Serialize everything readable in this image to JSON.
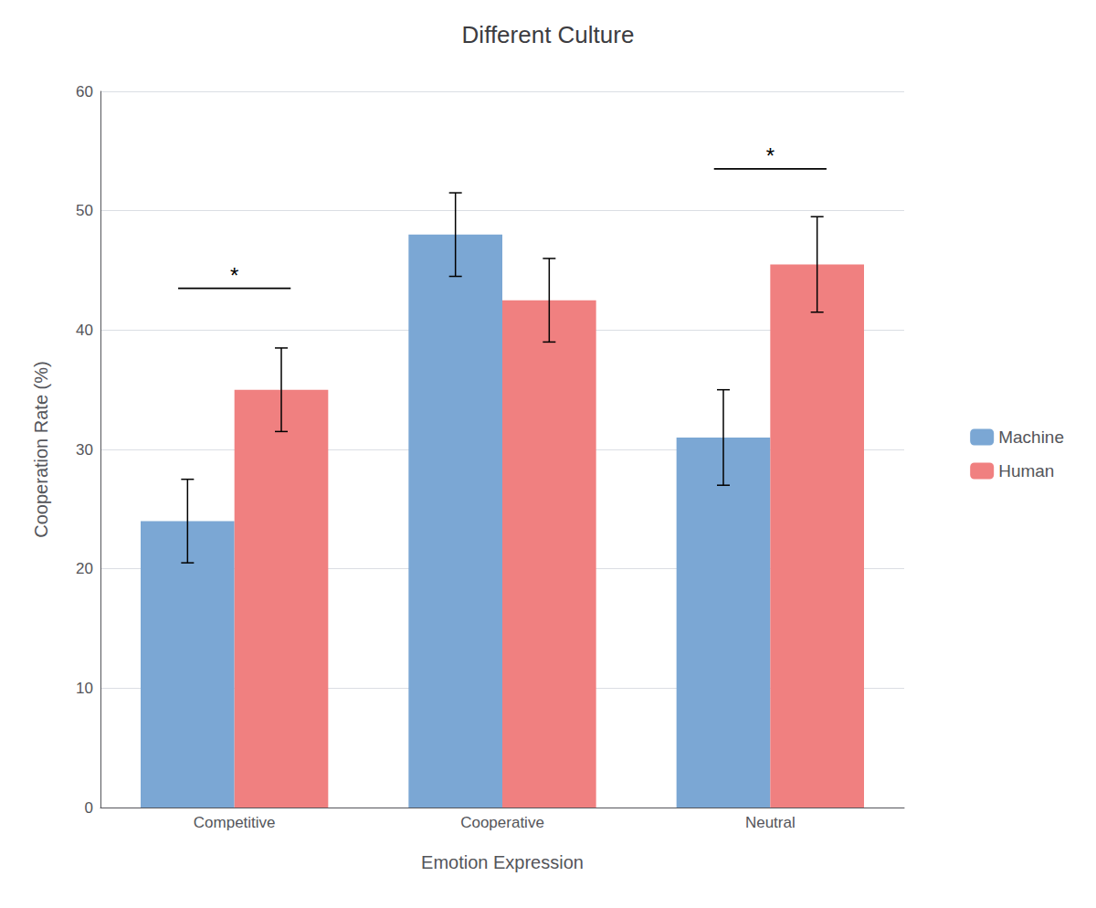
{
  "chart_data": {
    "type": "bar",
    "title": "Different Culture",
    "x_label": "Emotion Expression",
    "y_label": "Cooperation Rate (%)",
    "categories": [
      "Competitive",
      "Cooperative",
      "Neutral"
    ],
    "series": [
      {
        "name": "Machine",
        "color": "#7ba7d4",
        "values": [
          24.0,
          48.0,
          31.0
        ],
        "errors": [
          3.5,
          3.5,
          4.0
        ]
      },
      {
        "name": "Human",
        "color": "#f08080",
        "values": [
          35.0,
          42.5,
          45.5
        ],
        "errors": [
          3.5,
          3.5,
          4.0
        ]
      }
    ],
    "annotations": [
      {
        "category": "Competitive",
        "y": 43.5,
        "text": "*"
      },
      {
        "category": "Neutral",
        "y": 53.5,
        "text": "*"
      }
    ],
    "ylim": [
      0,
      60
    ],
    "yticks": [
      0,
      10,
      20,
      30,
      40,
      50,
      60
    ],
    "grid": true,
    "legend": "right"
  }
}
